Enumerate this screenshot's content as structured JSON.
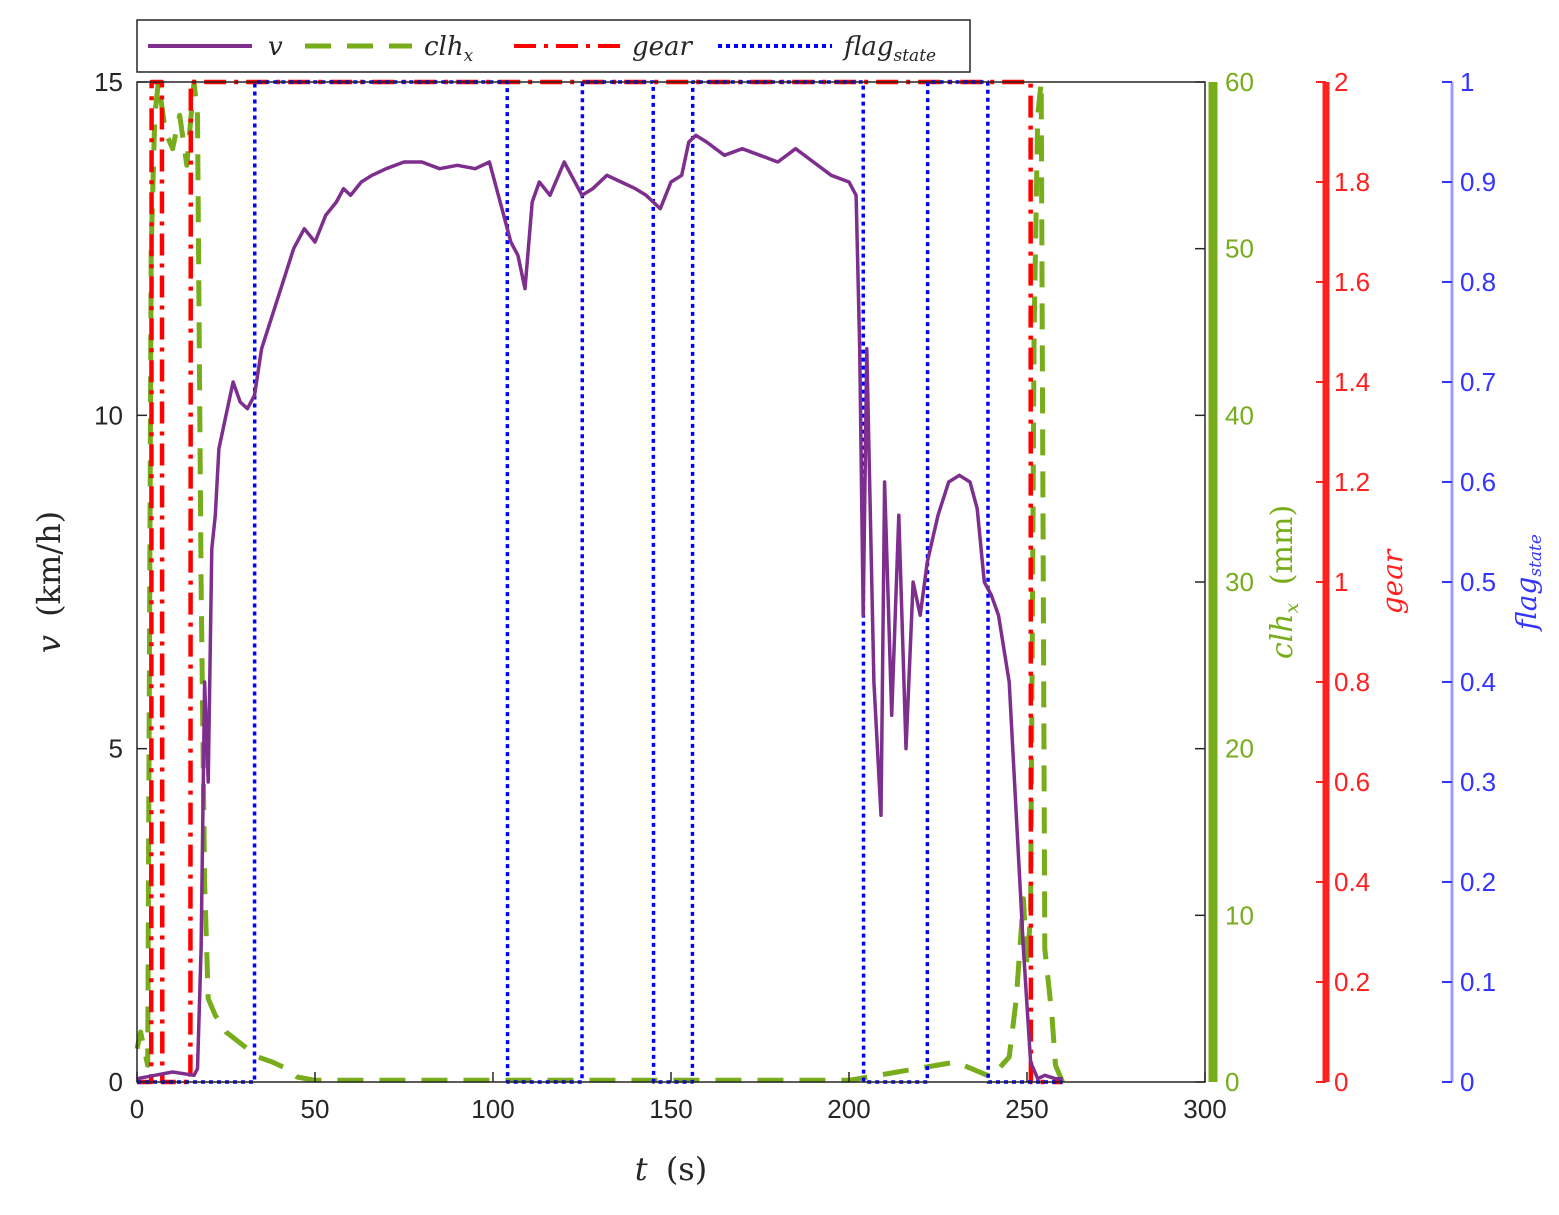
{
  "chart_data": {
    "type": "line",
    "title": "",
    "xlabel": {
      "symbol": "t",
      "unit": "(s)"
    },
    "xlim": [
      0,
      300
    ],
    "xticks": [
      0,
      50,
      100,
      150,
      200,
      250,
      300
    ],
    "axes": {
      "left": {
        "symbol": "v",
        "unit": "(km/h)",
        "ylim": [
          0,
          15
        ],
        "ticks": [
          0,
          5,
          10,
          15
        ],
        "color": "#262626"
      },
      "clh": {
        "symbol": "clh",
        "subscript": "x",
        "unit": "(mm)",
        "ylim": [
          0,
          60
        ],
        "ticks": [
          0,
          10,
          20,
          30,
          40,
          50,
          60
        ],
        "color": "#77ac1a"
      },
      "gear": {
        "label": "gear",
        "ylim": [
          0,
          2
        ],
        "ticks": [
          "0",
          "0.2",
          "0.4",
          "0.6",
          "0.8",
          "1",
          "1.2",
          "1.4",
          "1.6",
          "1.8",
          "2"
        ],
        "color": "#ff2020"
      },
      "flag": {
        "symbol": "flag",
        "subscript": "state",
        "ylim": [
          0,
          1
        ],
        "ticks": [
          "0",
          "0.1",
          "0.2",
          "0.3",
          "0.4",
          "0.5",
          "0.6",
          "0.7",
          "0.8",
          "0.9",
          "1"
        ],
        "color": "#3434ff"
      }
    },
    "legend": {
      "placement": "top-left, outside",
      "entries": [
        {
          "symbol": "v",
          "subscript": "",
          "style": "solid",
          "color": "#7e2f8e"
        },
        {
          "symbol": "clh",
          "subscript": "x",
          "style": "dashed",
          "color": "#77ac1a"
        },
        {
          "symbol": "gear",
          "subscript": "",
          "style": "dashdot",
          "color": "#ff0000"
        },
        {
          "symbol": "flag",
          "subscript": "state",
          "style": "dotted",
          "color": "#0000ff"
        }
      ]
    },
    "series": [
      {
        "name": "v",
        "axis": "left",
        "color": "#7e2f8e",
        "style": "solid",
        "x": [
          0,
          5,
          10,
          16,
          17,
          18,
          19,
          20,
          21,
          22,
          23,
          25,
          27,
          29,
          31,
          33,
          35,
          38,
          41,
          44,
          47,
          50,
          53,
          56,
          58,
          60,
          63,
          66,
          70,
          75,
          80,
          85,
          90,
          95,
          99,
          101,
          103,
          105,
          107,
          109,
          111,
          113,
          116,
          120,
          123,
          125,
          128,
          132,
          136,
          140,
          143,
          145,
          147,
          150,
          153,
          155,
          157,
          160,
          165,
          170,
          175,
          180,
          185,
          190,
          195,
          200,
          202,
          203,
          204,
          205,
          207,
          209,
          210,
          212,
          214,
          216,
          218,
          220,
          222,
          225,
          228,
          231,
          234,
          236,
          238,
          240,
          242,
          245,
          247,
          249,
          251,
          253,
          255,
          258,
          260
        ],
        "y": [
          0.05,
          0.1,
          0.15,
          0.1,
          0.2,
          2.0,
          6.0,
          4.5,
          8.0,
          8.5,
          9.5,
          10.0,
          10.5,
          10.2,
          10.1,
          10.3,
          11.0,
          11.5,
          12.0,
          12.5,
          12.8,
          12.6,
          13.0,
          13.2,
          13.4,
          13.3,
          13.5,
          13.6,
          13.7,
          13.8,
          13.8,
          13.7,
          13.75,
          13.7,
          13.8,
          13.4,
          13.0,
          12.6,
          12.4,
          11.9,
          13.2,
          13.5,
          13.3,
          13.8,
          13.5,
          13.3,
          13.4,
          13.6,
          13.5,
          13.4,
          13.3,
          13.2,
          13.1,
          13.5,
          13.6,
          14.1,
          14.2,
          14.1,
          13.9,
          14.0,
          13.9,
          13.8,
          14.0,
          13.8,
          13.6,
          13.5,
          13.3,
          11.0,
          7.0,
          11.0,
          6.0,
          4.0,
          9.0,
          5.5,
          8.5,
          5.0,
          7.5,
          7.0,
          7.8,
          8.5,
          9.0,
          9.1,
          9.0,
          8.6,
          7.5,
          7.3,
          7.0,
          6.0,
          4.0,
          2.0,
          0.3,
          0.05,
          0.1,
          0.05,
          0.05
        ]
      },
      {
        "name": "clh",
        "axis": "clh",
        "color": "#77ac1a",
        "style": "dashed",
        "x": [
          0,
          1,
          3,
          4,
          5,
          6,
          8,
          10,
          12,
          14,
          16,
          17,
          18,
          19,
          20,
          22,
          25,
          28,
          31,
          34,
          38,
          42,
          45,
          50,
          100,
          150,
          200,
          230,
          240,
          245,
          247,
          249,
          250,
          251,
          252,
          253,
          254,
          255,
          257,
          258,
          260
        ],
        "y": [
          2,
          3,
          1,
          50,
          58,
          60,
          57,
          56,
          58,
          55,
          60,
          58,
          30,
          12,
          5,
          4,
          3,
          2.5,
          2,
          1.5,
          1.2,
          0.8,
          0.3,
          0.1,
          0.1,
          0.1,
          0.1,
          1.2,
          0.3,
          1.5,
          5,
          11,
          7,
          10,
          45,
          58,
          60,
          8,
          4,
          1,
          0
        ]
      },
      {
        "name": "gear",
        "axis": "gear",
        "color": "#ff0000",
        "style": "dashdot",
        "x": [
          0,
          4,
          4.1,
          7,
          7.1,
          15,
          15.1,
          251,
          251.1,
          260
        ],
        "y": [
          0,
          0,
          2,
          2,
          0,
          0,
          2,
          2,
          0,
          0
        ]
      },
      {
        "name": "flag_state",
        "axis": "flag",
        "color": "#0000ff",
        "style": "dotted",
        "x": [
          0,
          33,
          33.1,
          104,
          104.1,
          125,
          125.1,
          145,
          145.1,
          156,
          156.1,
          204,
          204.1,
          222,
          222.1,
          239,
          239.1,
          252,
          252.1,
          260
        ],
        "y": [
          0,
          0,
          1,
          1,
          0,
          0,
          1,
          1,
          0,
          0,
          1,
          1,
          0,
          0,
          1,
          1,
          0,
          0,
          0,
          0
        ]
      }
    ]
  }
}
